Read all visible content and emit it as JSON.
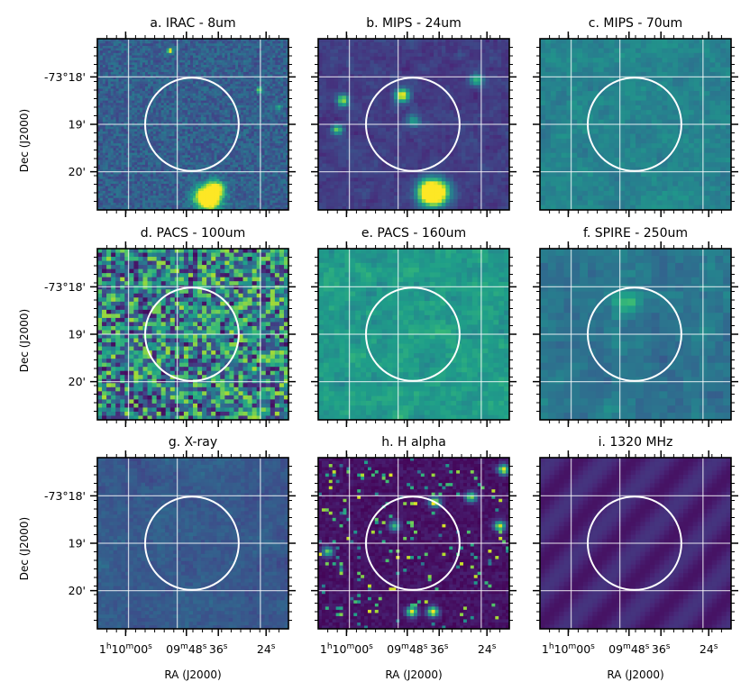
{
  "figure": {
    "panel_titles": [
      "a. IRAC - 8um",
      "b. MIPS - 24um",
      "c. MIPS - 70um",
      "d. PACS - 100um",
      "e. PACS - 160um",
      "f. SPIRE - 250um",
      "g. X-ray",
      "h. H alpha",
      "i. 1320 MHz"
    ],
    "dec_tick_labels": [
      "-73°18'",
      "19'",
      "20'"
    ],
    "ra_tick_labels": [
      "1h10m00s",
      "09m48s",
      "36s",
      "24s"
    ],
    "xlabel": "RA (J2000)",
    "ylabel": "Dec (J2000)"
  },
  "chart_data": {
    "type": "heatmap",
    "colormap": "viridis",
    "grid": true,
    "xlabel": "RA (J2000)",
    "ylabel": "Dec (J2000)",
    "dec_ticks": [
      "-73°18'",
      "19'",
      "20'"
    ],
    "ra_ticks": [
      "1h10m00s",
      "09m48s",
      "36s",
      "24s"
    ],
    "aperture": "circle",
    "panels": [
      {
        "title": "a. IRAC - 8um",
        "pixels": 72,
        "base": 0.3,
        "noise": 0.1,
        "smooth": 0,
        "sources": [
          {
            "x": 0.58,
            "y": 0.93,
            "a": 1.4,
            "s": 0.045
          },
          {
            "x": 0.62,
            "y": 0.87,
            "a": 0.6,
            "s": 0.03
          },
          {
            "x": 0.38,
            "y": 0.07,
            "a": 0.7,
            "s": 0.012
          },
          {
            "x": 0.85,
            "y": 0.3,
            "a": 0.5,
            "s": 0.012
          },
          {
            "x": 0.95,
            "y": 0.4,
            "a": 0.4,
            "s": 0.012
          }
        ]
      },
      {
        "title": "b. MIPS - 24um",
        "pixels": 48,
        "base": 0.18,
        "noise": 0.1,
        "smooth": 1,
        "sources": [
          {
            "x": 0.6,
            "y": 0.9,
            "a": 1.6,
            "s": 0.05
          },
          {
            "x": 0.44,
            "y": 0.33,
            "a": 0.9,
            "s": 0.025
          },
          {
            "x": 0.13,
            "y": 0.36,
            "a": 0.7,
            "s": 0.022
          },
          {
            "x": 0.1,
            "y": 0.53,
            "a": 0.6,
            "s": 0.02
          },
          {
            "x": 0.83,
            "y": 0.24,
            "a": 0.5,
            "s": 0.025
          },
          {
            "x": 0.5,
            "y": 0.48,
            "a": 0.4,
            "s": 0.025
          }
        ]
      },
      {
        "title": "c. MIPS - 70um",
        "pixels": 36,
        "base": 0.45,
        "noise": 0.14,
        "smooth": 2,
        "sources": []
      },
      {
        "title": "d. PACS - 100um",
        "pixels": 42,
        "base": 0.45,
        "noise": 0.42,
        "smooth": 0,
        "sources": []
      },
      {
        "title": "e. PACS - 160um",
        "pixels": 36,
        "base": 0.55,
        "noise": 0.14,
        "smooth": 1,
        "sources": []
      },
      {
        "title": "f. SPIRE - 250um",
        "pixels": 24,
        "base": 0.38,
        "noise": 0.14,
        "smooth": 1,
        "sources": [
          {
            "x": 0.46,
            "y": 0.31,
            "a": 0.3,
            "s": 0.06
          }
        ]
      },
      {
        "title": "g. X-ray",
        "pixels": 48,
        "base": 0.28,
        "noise": 0.12,
        "smooth": 3,
        "sources": []
      },
      {
        "title": "h. H alpha",
        "pixels": 54,
        "base": 0.05,
        "noise": 0.04,
        "smooth": 0,
        "speckle": 0.06,
        "sources": [
          {
            "x": 0.6,
            "y": 0.9,
            "a": 1.0,
            "s": 0.02
          },
          {
            "x": 0.49,
            "y": 0.9,
            "a": 0.9,
            "s": 0.02
          },
          {
            "x": 0.61,
            "y": 0.26,
            "a": 0.9,
            "s": 0.02
          },
          {
            "x": 0.95,
            "y": 0.4,
            "a": 0.9,
            "s": 0.02
          },
          {
            "x": 0.97,
            "y": 0.07,
            "a": 0.9,
            "s": 0.02
          },
          {
            "x": 0.8,
            "y": 0.23,
            "a": 0.8,
            "s": 0.02
          },
          {
            "x": 0.05,
            "y": 0.55,
            "a": 0.7,
            "s": 0.02
          },
          {
            "x": 0.4,
            "y": 0.4,
            "a": 0.6,
            "s": 0.02
          }
        ]
      },
      {
        "title": "i. 1320 MHz",
        "pixels": 40,
        "base": 0.1,
        "noise": 0.0,
        "smooth": 0,
        "stripes": 0.05,
        "sources": []
      }
    ]
  }
}
